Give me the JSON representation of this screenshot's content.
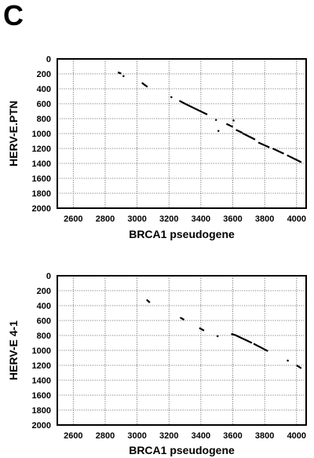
{
  "panel_label": "C",
  "chart_data": [
    {
      "type": "scatter",
      "title": "",
      "xlabel": "BRCA1 pseudogene",
      "ylabel": "HERV-E.PTN",
      "xlim": [
        2500,
        4060
      ],
      "ylim": [
        0,
        2000
      ],
      "y_inverted": true,
      "grid": true,
      "x_ticks": [
        "2600",
        "2800",
        "3000",
        "3200",
        "3400",
        "3600",
        "3800",
        "4000"
      ],
      "y_ticks": [
        "0",
        "200",
        "400",
        "600",
        "800",
        "1000",
        "1200",
        "1400",
        "1600",
        "1800",
        "2000"
      ],
      "segments": [
        {
          "x": [
            2880,
            2900
          ],
          "y": [
            180,
            195
          ]
        },
        {
          "x": [
            2910,
            2920
          ],
          "y": [
            225,
            235
          ]
        },
        {
          "x": [
            3030,
            3065
          ],
          "y": [
            320,
            375
          ]
        },
        {
          "x": [
            3210,
            3220
          ],
          "y": [
            505,
            520
          ]
        },
        {
          "x": [
            3265,
            3300
          ],
          "y": [
            560,
            600
          ]
        },
        {
          "x": [
            3300,
            3440
          ],
          "y": [
            600,
            745
          ]
        },
        {
          "x": [
            3490,
            3500
          ],
          "y": [
            815,
            820
          ]
        },
        {
          "x": [
            3505,
            3515
          ],
          "y": [
            960,
            970
          ]
        },
        {
          "x": [
            3560,
            3600
          ],
          "y": [
            870,
            910
          ]
        },
        {
          "x": [
            3600,
            3610
          ],
          "y": [
            820,
            830
          ]
        },
        {
          "x": [
            3620,
            3660
          ],
          "y": [
            950,
            990
          ]
        },
        {
          "x": [
            3660,
            3740
          ],
          "y": [
            995,
            1080
          ]
        },
        {
          "x": [
            3760,
            3830
          ],
          "y": [
            1120,
            1185
          ]
        },
        {
          "x": [
            3850,
            3920
          ],
          "y": [
            1200,
            1270
          ]
        },
        {
          "x": [
            3940,
            4030
          ],
          "y": [
            1290,
            1385
          ]
        }
      ]
    },
    {
      "type": "scatter",
      "title": "",
      "xlabel": "BRCA1 pseudogene",
      "ylabel": "HERV-E 4-1",
      "xlim": [
        2500,
        4060
      ],
      "ylim": [
        0,
        2000
      ],
      "y_inverted": true,
      "grid": true,
      "x_ticks": [
        "2600",
        "2800",
        "3000",
        "3200",
        "3400",
        "3600",
        "3800",
        "4000"
      ],
      "y_ticks": [
        "0",
        "200",
        "400",
        "600",
        "800",
        "1000",
        "1200",
        "1400",
        "1600",
        "1800",
        "2000"
      ],
      "segments": [
        {
          "x": [
            3060,
            3080
          ],
          "y": [
            320,
            360
          ]
        },
        {
          "x": [
            3270,
            3295
          ],
          "y": [
            560,
            590
          ]
        },
        {
          "x": [
            3390,
            3420
          ],
          "y": [
            700,
            735
          ]
        },
        {
          "x": [
            3500,
            3510
          ],
          "y": [
            805,
            815
          ]
        },
        {
          "x": [
            3590,
            3610
          ],
          "y": [
            780,
            790
          ]
        },
        {
          "x": [
            3610,
            3720
          ],
          "y": [
            790,
            900
          ]
        },
        {
          "x": [
            3730,
            3820
          ],
          "y": [
            910,
            1010
          ]
        },
        {
          "x": [
            3940,
            3950
          ],
          "y": [
            1130,
            1145
          ]
        },
        {
          "x": [
            4000,
            4030
          ],
          "y": [
            1200,
            1240
          ]
        }
      ]
    }
  ]
}
